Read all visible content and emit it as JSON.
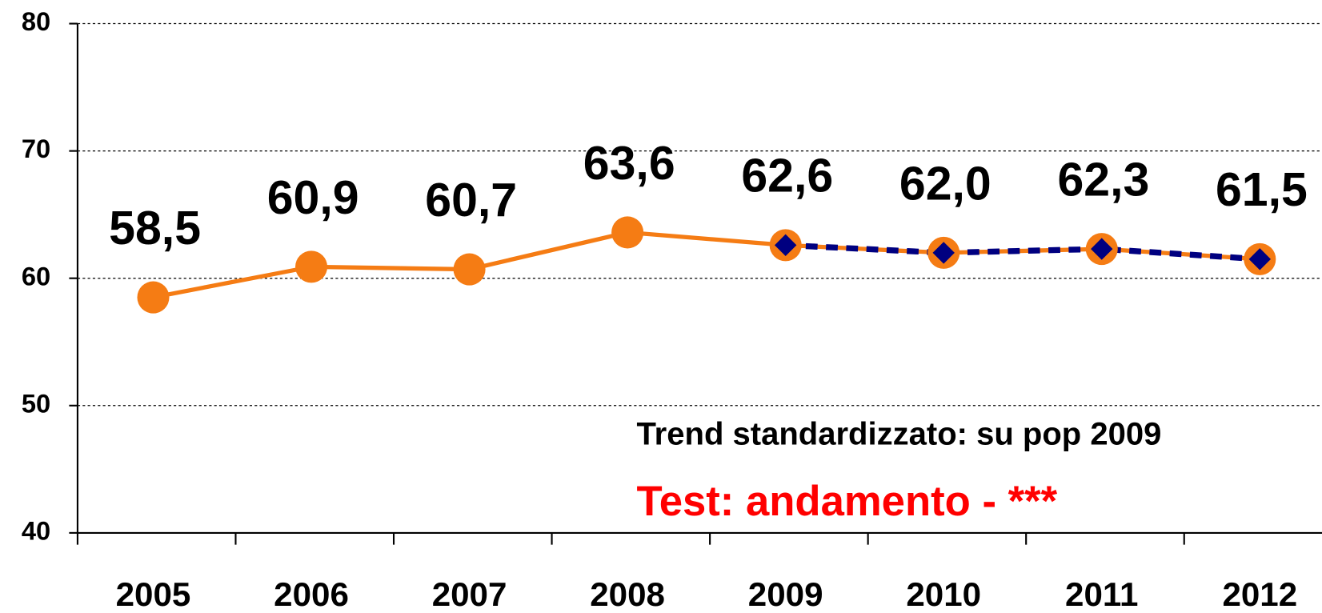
{
  "chart_data": {
    "type": "line",
    "categories": [
      "2005",
      "2006",
      "2007",
      "2008",
      "2009",
      "2010",
      "2011",
      "2012"
    ],
    "series": [
      {
        "color": "#f57c14",
        "marker": "circle",
        "values": [
          58.5,
          60.9,
          60.7,
          63.6,
          62.6,
          62.0,
          62.3,
          61.5
        ],
        "value_labels": [
          "58,5",
          "60,9",
          "60,7",
          "63,6",
          "62,6",
          "62,0",
          "62,3",
          "61,5"
        ]
      },
      {
        "color": "#000080",
        "marker": "diamond",
        "dashed": true,
        "values": [
          null,
          null,
          null,
          null,
          62.6,
          62.0,
          62.3,
          61.5
        ]
      }
    ],
    "ylim": [
      40,
      80
    ],
    "yticks": [
      40,
      50,
      60,
      70,
      80
    ],
    "grid": true,
    "annotations": [
      {
        "text": "Trend standardizzato: su pop 2009",
        "color": "#000000"
      },
      {
        "text": "Test: andamento - ***",
        "color": "#ff0000"
      }
    ]
  }
}
